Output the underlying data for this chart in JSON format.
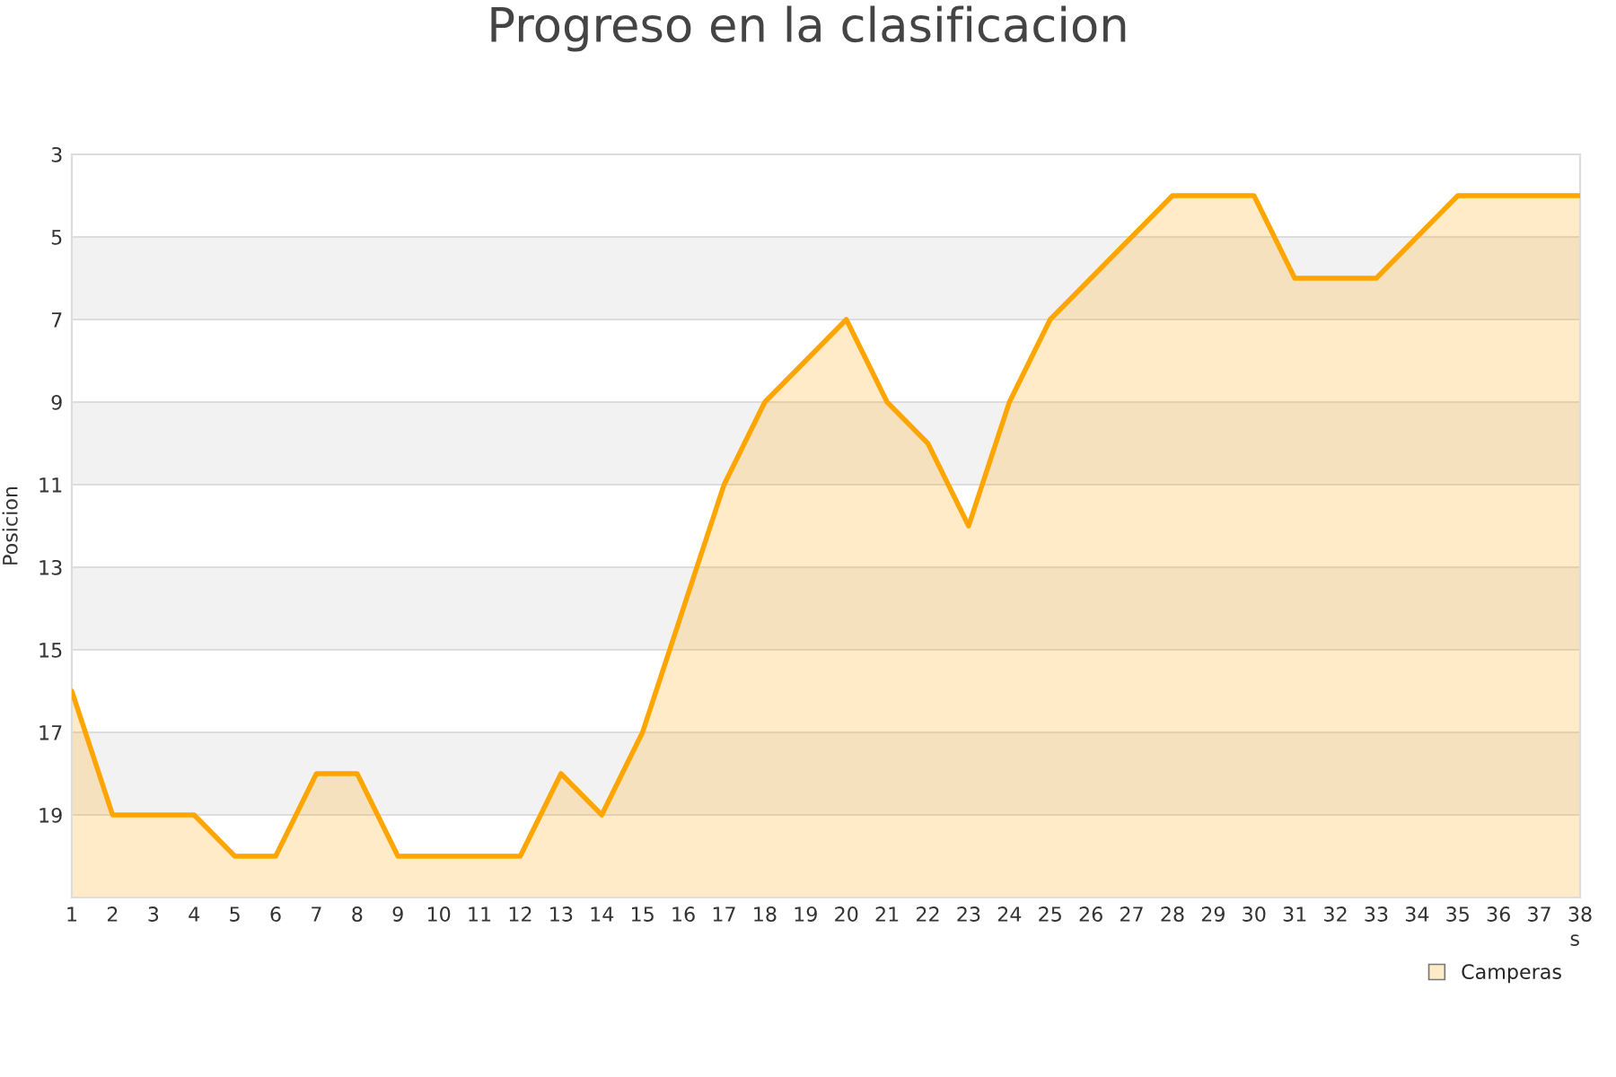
{
  "chart_data": {
    "type": "area",
    "title": "Progreso en la clasificacion",
    "ylabel": "Posicion",
    "xlabel": "s",
    "x": [
      1,
      2,
      3,
      4,
      5,
      6,
      7,
      8,
      9,
      10,
      11,
      12,
      13,
      14,
      15,
      16,
      17,
      18,
      19,
      20,
      21,
      22,
      23,
      24,
      25,
      26,
      27,
      28,
      29,
      30,
      31,
      32,
      33,
      34,
      35,
      36,
      37,
      38
    ],
    "series": [
      {
        "name": "Camperas",
        "color": "#ffa500",
        "values": [
          16,
          19,
          19,
          19,
          20,
          20,
          18,
          18,
          20,
          20,
          20,
          20,
          18,
          19,
          17,
          14,
          11,
          9,
          8,
          7,
          9,
          10,
          12,
          9,
          7,
          6,
          5,
          4,
          4,
          4,
          6,
          6,
          6,
          5,
          4,
          4,
          4,
          4
        ]
      }
    ],
    "xlim": [
      1,
      38
    ],
    "xticks": [
      1,
      2,
      3,
      4,
      5,
      6,
      7,
      8,
      9,
      10,
      11,
      12,
      13,
      14,
      15,
      16,
      17,
      18,
      19,
      20,
      21,
      22,
      23,
      24,
      25,
      26,
      27,
      28,
      29,
      30,
      31,
      32,
      33,
      34,
      35,
      36,
      37,
      38
    ],
    "ylim": [
      21,
      3
    ],
    "yticks": [
      3,
      5,
      7,
      9,
      11,
      13,
      15,
      17,
      19
    ],
    "grid": "y",
    "legend": "bottom right",
    "marker": "none",
    "line_style": "solid"
  }
}
